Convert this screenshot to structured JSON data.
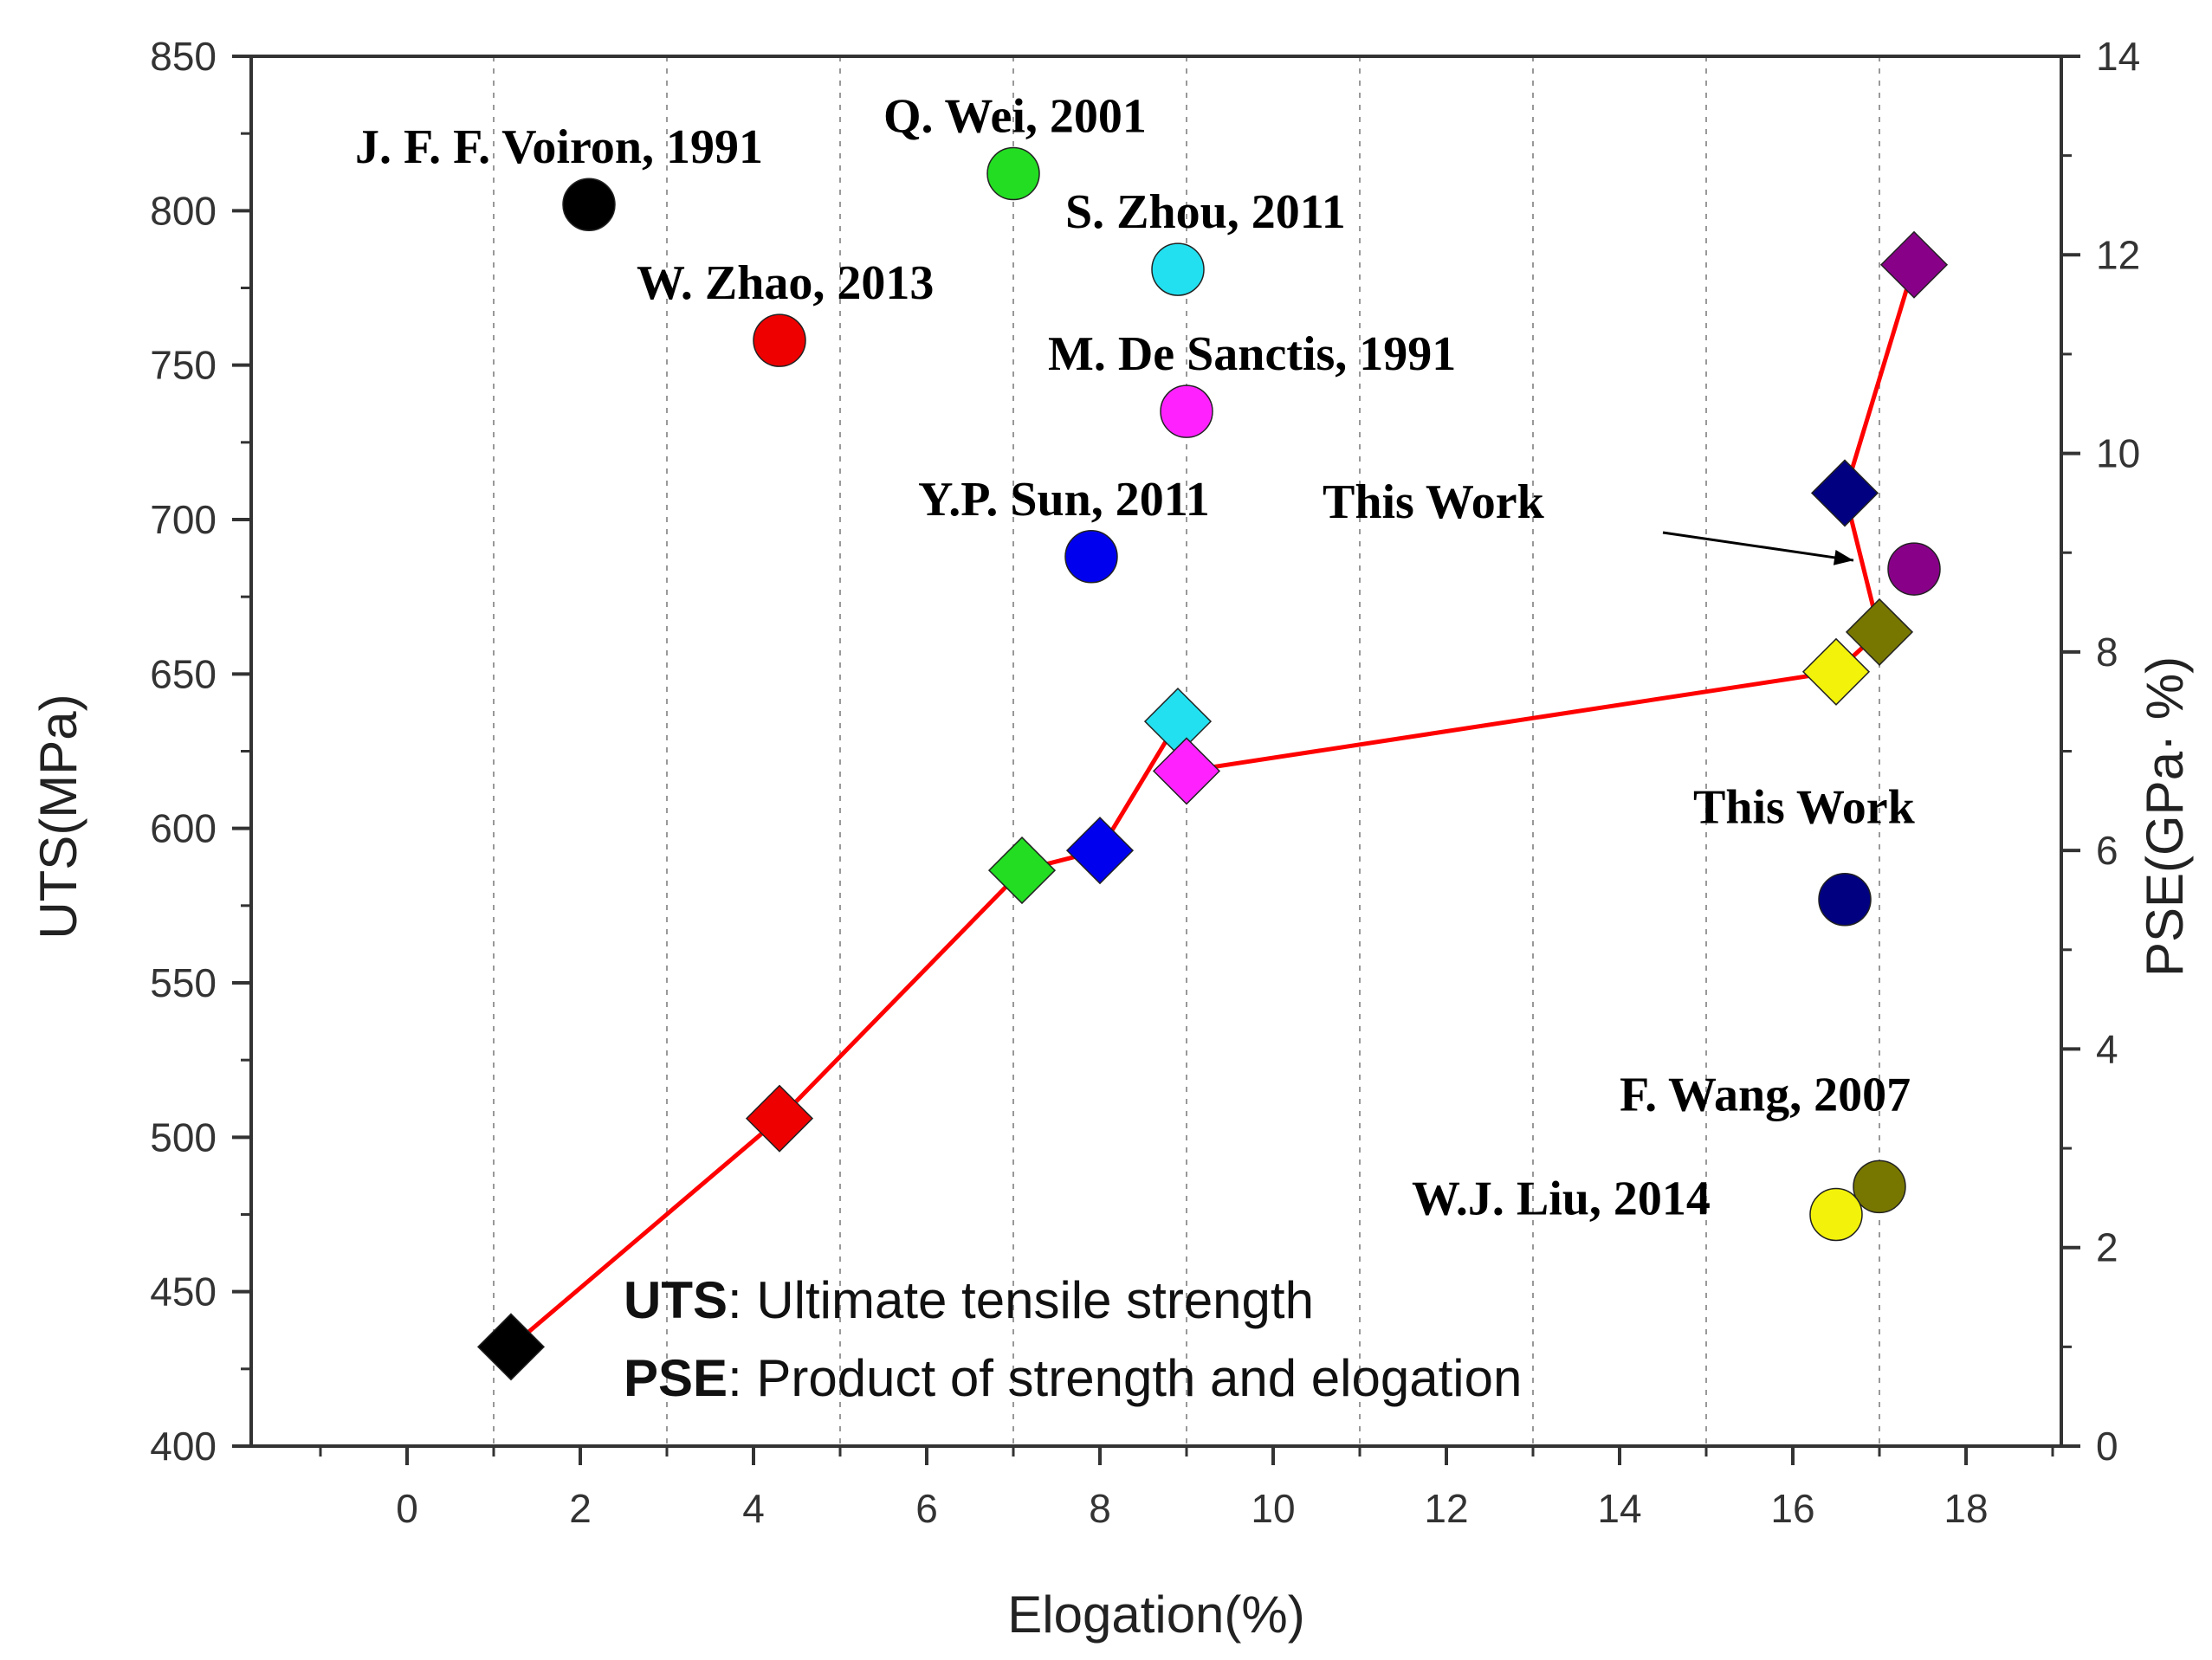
{
  "chart_data": {
    "type": "scatter",
    "title": "",
    "xlabel": "Elogation(%)",
    "ylabel": "UTS(MPa)",
    "y2label": "PSE(GPa· %)",
    "xlim": [
      -1.8,
      19.1
    ],
    "ylim": [
      400,
      850
    ],
    "y2lim": [
      0,
      14
    ],
    "xticks": [
      "0",
      "2",
      "4",
      "6",
      "8",
      "10",
      "12",
      "14",
      "16",
      "18"
    ],
    "yticks": [
      "400",
      "450",
      "500",
      "550",
      "600",
      "650",
      "700",
      "750",
      "800",
      "850"
    ],
    "y2ticks": [
      "0",
      "2",
      "4",
      "6",
      "8",
      "10",
      "12",
      "14"
    ],
    "grid": "vertical dotted lines at odd x values",
    "uts_points": [
      {
        "label": "J. F. F. Voiron, 1991",
        "x": 2.1,
        "y": 802,
        "color": "#000000"
      },
      {
        "label": "Q. Wei, 2001",
        "x": 7.0,
        "y": 812,
        "color": "#22dd22"
      },
      {
        "label": "S. Zhou, 2011",
        "x": 8.9,
        "y": 781,
        "color": "#22e0f0"
      },
      {
        "label": "W. Zhao, 2013",
        "x": 4.3,
        "y": 758,
        "color": "#ee0000"
      },
      {
        "label": "M. De Sanctis, 1991",
        "x": 9.0,
        "y": 735,
        "color": "#ff22ff"
      },
      {
        "label": "Y.P. Sun, 2011",
        "x": 7.9,
        "y": 688,
        "color": "#0000ee"
      },
      {
        "label": "This Work",
        "x": 16.6,
        "y": 577,
        "color": "#000080"
      },
      {
        "label": "F. Wang, 2007",
        "x": 17.0,
        "y": 484,
        "color": "#777700"
      },
      {
        "label": "W.J. Liu, 2014",
        "x": 16.5,
        "y": 475,
        "color": "#f2f20a"
      },
      {
        "label": "This Work",
        "x": 17.4,
        "y": 684,
        "color": "#880088"
      }
    ],
    "pse_series": {
      "name": "PSE",
      "line_color": "#ff0000",
      "points": [
        {
          "x": 1.2,
          "y": 1.0,
          "color": "#000000"
        },
        {
          "x": 4.3,
          "y": 3.3,
          "color": "#ee0000"
        },
        {
          "x": 7.1,
          "y": 5.8,
          "color": "#22dd22"
        },
        {
          "x": 8.0,
          "y": 6.0,
          "color": "#0000ee"
        },
        {
          "x": 8.9,
          "y": 7.3,
          "color": "#22e0f0"
        },
        {
          "x": 9.0,
          "y": 6.8,
          "color": "#ff22ff"
        },
        {
          "x": 16.5,
          "y": 7.8,
          "color": "#f2f20a"
        },
        {
          "x": 17.0,
          "y": 8.2,
          "color": "#777700"
        },
        {
          "x": 16.6,
          "y": 9.6,
          "color": "#000080"
        },
        {
          "x": 17.4,
          "y": 11.9,
          "color": "#880088"
        }
      ],
      "line_order": [
        0,
        1,
        2,
        3,
        4,
        5,
        6,
        7,
        8,
        9
      ]
    },
    "annotation": {
      "text": "This Work",
      "arrow_to_point_index": 9
    },
    "legend": [
      {
        "key": "UTS",
        "text": ": Ultimate tensile strength"
      },
      {
        "key": "PSE",
        "text": ": Product of strength and elogation"
      }
    ]
  }
}
